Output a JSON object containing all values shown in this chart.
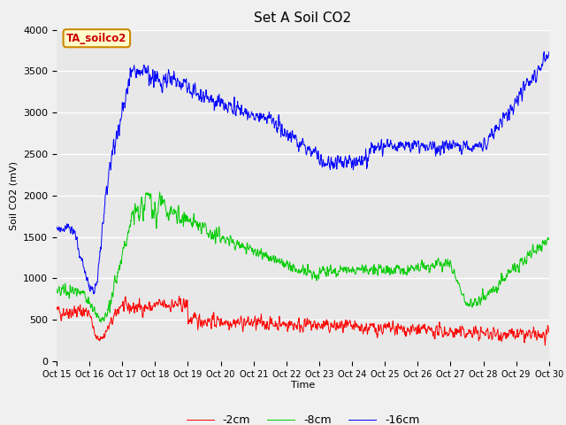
{
  "title": "Set A Soil CO2",
  "ylabel": "Soil CO2 (mV)",
  "xlabel": "Time",
  "annotation": "TA_soilco2",
  "xtick_labels": [
    "Oct 15",
    "Oct 16",
    "Oct 17",
    "Oct 18",
    "Oct 19",
    "Oct 20",
    "Oct 21",
    "Oct 22",
    "Oct 23",
    "Oct 24",
    "Oct 25",
    "Oct 26",
    "Oct 27",
    "Oct 28",
    "Oct 29",
    "Oct 30"
  ],
  "ylim": [
    0,
    4000
  ],
  "xlim_days": [
    0,
    15
  ],
  "colors": {
    "2cm": "#ff0000",
    "8cm": "#00cc00",
    "16cm": "#0000ff"
  },
  "legend": [
    "-2cm",
    "-8cm",
    "-16cm"
  ],
  "bg_color": "#e8e8e8",
  "fig_bg": "#f0f0f0",
  "title_fontsize": 11,
  "axis_bg": "#e8e8e8",
  "yticks": [
    0,
    500,
    1000,
    1500,
    2000,
    2500,
    3000,
    3500,
    4000
  ]
}
